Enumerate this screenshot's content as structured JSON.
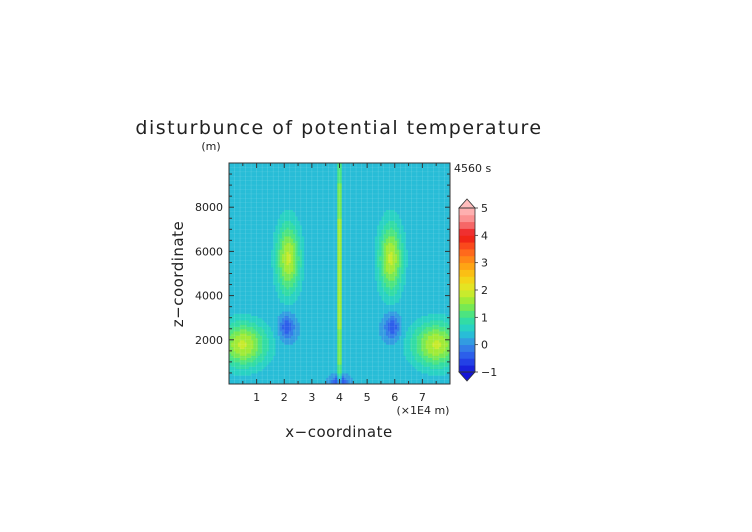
{
  "chart_data": {
    "type": "heatmap",
    "title": "disturbunce of potential temperature",
    "ylabel": "z−coordinate",
    "yunit": "(m)",
    "xlabel": "x−coordinate",
    "xunit": "(×1E4 m)",
    "time_label": "4560 s",
    "xlim": [
      0,
      8
    ],
    "ylim": [
      0,
      10000
    ],
    "xticks": [
      1,
      2,
      3,
      4,
      5,
      6,
      7
    ],
    "yticks": [
      2000,
      4000,
      6000,
      8000
    ],
    "colorbar": {
      "min": -1,
      "max": 5,
      "step": 0.25,
      "tick_values": [
        -1,
        0,
        1,
        2,
        3,
        4,
        5
      ],
      "tick_labels": [
        "−1",
        "0",
        "1",
        "2",
        "3",
        "4",
        "5"
      ],
      "extend": "both"
    },
    "features": [
      {
        "x": 4.0,
        "z": 5000,
        "sx": 0.05,
        "sz": 4700,
        "amp": 1.9,
        "desc": "central vertical plume"
      },
      {
        "x": 2.15,
        "z": 5700,
        "sx": 0.3,
        "sz": 1100,
        "amp": 1.5,
        "desc": "upper-left warm lobe"
      },
      {
        "x": 5.85,
        "z": 5700,
        "sx": 0.3,
        "sz": 1100,
        "amp": 1.5,
        "desc": "upper-right warm lobe"
      },
      {
        "x": 0.5,
        "z": 1800,
        "sx": 0.6,
        "sz": 700,
        "amp": 1.5,
        "desc": "lower-left warm region"
      },
      {
        "x": 7.5,
        "z": 1800,
        "sx": 0.6,
        "sz": 700,
        "amp": 1.5,
        "desc": "lower-right warm region"
      },
      {
        "x": 2.1,
        "z": 2600,
        "sx": 0.2,
        "sz": 400,
        "amp": -0.8,
        "desc": "left cold core"
      },
      {
        "x": 5.9,
        "z": 2600,
        "sx": 0.2,
        "sz": 400,
        "amp": -0.8,
        "desc": "right cold core"
      },
      {
        "x": 4.0,
        "z": 100,
        "sx": 0.2,
        "sz": 200,
        "amp": -1.0,
        "desc": "surface cold pool"
      }
    ]
  }
}
